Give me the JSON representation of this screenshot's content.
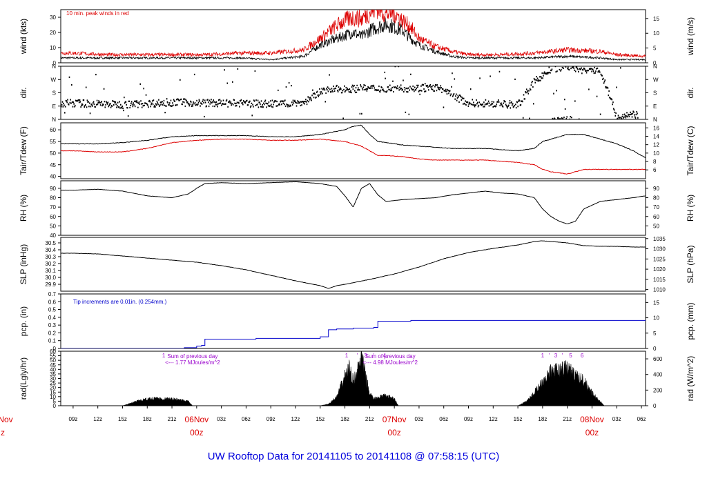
{
  "chart_data": {
    "type": "line",
    "title": "UW Rooftop Data for 20141105  to  20141108 @ 07:58:15  (UTC)",
    "x_axis": {
      "unit": "hours since 20141105 09z",
      "range": [
        -1.5,
        69.5
      ],
      "tick_labels": [
        "09z",
        "12z",
        "15z",
        "18z",
        "21z",
        "06Nov",
        "03z",
        "06z",
        "09z",
        "12z",
        "15z",
        "18z",
        "21z",
        "07Nov",
        "03z",
        "06z",
        "09z",
        "12z",
        "15z",
        "18z",
        "21z",
        "08Nov",
        "03z",
        "06z"
      ],
      "tick_hours": [
        0,
        3,
        6,
        9,
        12,
        15,
        18,
        21,
        24,
        27,
        30,
        33,
        36,
        39,
        42,
        45,
        48,
        51,
        54,
        57,
        60,
        63,
        66,
        69
      ],
      "day_markers": [
        {
          "hour": -9,
          "label": "Nov",
          "sub": "z"
        },
        {
          "hour": 15,
          "label": "06Nov",
          "sub": "00z"
        },
        {
          "hour": 39,
          "label": "07Nov",
          "sub": "00z"
        },
        {
          "hour": 63,
          "label": "08Nov",
          "sub": "00z"
        }
      ]
    },
    "panels": [
      {
        "id": "wind",
        "ylabel_left": "wind (kts)",
        "ylabel_right": "wind (m/s)",
        "ylim": [
          0,
          35
        ],
        "ticks_left": [
          0,
          10,
          20,
          30
        ],
        "ylim_right": [
          0,
          18
        ],
        "ticks_right": [
          0,
          5,
          10,
          15
        ],
        "annotation": "10 min. peak winds in red",
        "series": [
          {
            "name": "wind speed",
            "color": "#000000",
            "hours": [
              0,
              4,
              8,
              12,
              16,
              20,
              24,
              26,
              28,
              30,
              31,
              32,
              33,
              34,
              35,
              36,
              37,
              38,
              39,
              40,
              41,
              42,
              44,
              46,
              48,
              50,
              52,
              56,
              60,
              64,
              66,
              69.5
            ],
            "values": [
              3,
              3,
              3,
              3,
              3,
              3,
              2,
              3,
              4,
              11,
              13,
              15,
              17,
              19,
              16,
              20,
              22,
              24,
              22,
              20,
              15,
              11,
              7,
              4,
              3,
              3,
              3,
              3,
              4,
              3,
              2,
              2
            ]
          },
          {
            "name": "10 min. peak winds",
            "color": "#dd0000",
            "hours": [
              0,
              4,
              8,
              12,
              16,
              20,
              24,
              26,
              28,
              30,
              31,
              32,
              33,
              34,
              35,
              36,
              37,
              38,
              39,
              40,
              41,
              42,
              44,
              46,
              48,
              50,
              52,
              56,
              60,
              64,
              66,
              69.5
            ],
            "values": [
              6,
              5,
              5,
              5,
              5,
              6,
              6,
              7,
              8,
              15,
              19,
              23,
              26,
              28,
              27,
              31,
              34,
              30,
              31,
              26,
              22,
              15,
              10,
              7,
              5,
              5,
              5,
              6,
              8,
              7,
              5,
              4
            ]
          }
        ]
      },
      {
        "id": "dir",
        "ylabel_left": "dir.",
        "ylabel_right": "dir.",
        "ylim": [
          0,
          360
        ],
        "tick_labels": [
          "N",
          "E",
          "S",
          "W",
          "N"
        ],
        "tick_values": [
          0,
          90,
          180,
          270,
          360
        ],
        "series": [
          {
            "name": "wind direction",
            "color": "#000000",
            "style": "dots",
            "hours": [
              0,
              6,
              12,
              18,
              24,
              28,
              30,
              32,
              36,
              40,
              44,
              48,
              50,
              52,
              54,
              56,
              58,
              60,
              62,
              64,
              66,
              68
            ],
            "values": [
              110,
              100,
              115,
              110,
              105,
              115,
              190,
              205,
              210,
              210,
              215,
              110,
              110,
              105,
              100,
              260,
              340,
              360,
              330,
              330,
              10,
              30
            ]
          }
        ]
      },
      {
        "id": "temp",
        "ylabel_left": "Tair/Tdew (F)",
        "ylabel_right": "Tair/Tdew (C)",
        "ylim": [
          39,
          63
        ],
        "ticks_left": [
          40,
          45,
          50,
          55,
          60
        ],
        "ylim_right": [
          3.9,
          17.2
        ],
        "ticks_right": [
          6,
          8,
          10,
          12,
          14,
          16
        ],
        "series": [
          {
            "name": "Tair",
            "color": "#000000",
            "hours": [
              0,
              3,
              6,
              9,
              12,
              15,
              18,
              21,
              24,
              27,
              30,
              33,
              34,
              35,
              36,
              37,
              38,
              40,
              42,
              44,
              46,
              48,
              50,
              52,
              54,
              56,
              57,
              58,
              60,
              62,
              64,
              66,
              68,
              69.5
            ],
            "values": [
              54,
              54,
              54.5,
              55.5,
              57,
              57.5,
              57.5,
              57.5,
              57,
              57,
              58,
              60,
              61.5,
              62,
              58,
              55,
              54.5,
              53.5,
              53,
              52.5,
              52,
              52,
              52,
              51.5,
              51,
              52,
              55,
              56,
              58,
              58,
              56,
              54,
              51,
              48
            ]
          },
          {
            "name": "Tdew",
            "color": "#dd0000",
            "hours": [
              0,
              3,
              6,
              9,
              12,
              15,
              18,
              21,
              24,
              27,
              30,
              33,
              34,
              35,
              36,
              37,
              38,
              40,
              42,
              44,
              46,
              48,
              50,
              52,
              54,
              56,
              57,
              58,
              60,
              62,
              64,
              66,
              68,
              69.5
            ],
            "values": [
              51,
              50.5,
              50.5,
              52,
              54.5,
              55.5,
              56,
              56,
              55.5,
              55.5,
              56,
              55,
              54,
              53,
              51,
              49,
              49,
              48.5,
              47.5,
              47,
              47,
              47,
              47,
              46.5,
              46,
              45,
              43,
              42,
              41,
              43,
              43,
              43,
              43,
              43
            ]
          }
        ]
      },
      {
        "id": "rh",
        "ylabel_left": "RH (%)",
        "ylabel_right": "RH (%)",
        "ylim": [
          40,
          98
        ],
        "ticks_left": [
          40,
          50,
          60,
          70,
          80,
          90
        ],
        "ticks_right": [
          50,
          60,
          70,
          80,
          90
        ],
        "series": [
          {
            "name": "RH",
            "color": "#000000",
            "hours": [
              0,
              3,
              6,
              9,
              12,
              14,
              15,
              16,
              18,
              21,
              24,
              27,
              30,
              32,
              33,
              34,
              35,
              36,
              37,
              38,
              40,
              42,
              44,
              46,
              48,
              50,
              52,
              54,
              56,
              57,
              58,
              59,
              60,
              61,
              62,
              64,
              66,
              68,
              69.5
            ],
            "values": [
              88,
              89,
              87,
              82,
              80,
              84,
              90,
              95,
              96,
              95,
              96,
              97,
              95,
              92,
              82,
              70,
              90,
              95,
              83,
              76,
              78,
              79,
              80,
              83,
              85,
              87,
              85,
              84,
              80,
              68,
              60,
              55,
              52,
              55,
              68,
              76,
              78,
              80,
              82
            ]
          }
        ]
      },
      {
        "id": "slp",
        "ylabel_left": "SLP (inHg)",
        "ylabel_right": "SLP (hPa)",
        "ylim": [
          29.8,
          30.58
        ],
        "ticks_left": [
          29.9,
          30.0,
          30.1,
          30.2,
          30.3,
          30.4,
          30.5
        ],
        "ylim_right": [
          1009.2,
          1035.6
        ],
        "ticks_right": [
          1010,
          1015,
          1020,
          1025,
          1030,
          1035
        ],
        "series": [
          {
            "name": "SLP",
            "color": "#000000",
            "hours": [
              0,
              3,
              6,
              9,
              12,
              15,
              18,
              21,
              24,
              27,
              30,
              31,
              32,
              33,
              36,
              39,
              42,
              45,
              48,
              51,
              54,
              56,
              57,
              58,
              60,
              62,
              64,
              66,
              68,
              69.5
            ],
            "values": [
              30.35,
              30.34,
              30.31,
              30.28,
              30.25,
              30.22,
              30.17,
              30.11,
              30.03,
              29.95,
              29.88,
              29.84,
              29.88,
              29.9,
              29.97,
              30.05,
              30.15,
              30.27,
              30.36,
              30.42,
              30.47,
              30.52,
              30.53,
              30.52,
              30.5,
              30.46,
              30.45,
              30.45,
              30.44,
              30.44
            ]
          }
        ]
      },
      {
        "id": "pcp",
        "ylabel_left": "pcp. (in)",
        "ylabel_right": "pcp. (mm)",
        "ylim": [
          0,
          0.7
        ],
        "ticks_left": [
          0,
          0.1,
          0.2,
          0.3,
          0.4,
          0.5,
          0.6,
          0.7
        ],
        "ylim_right": [
          0,
          17.78
        ],
        "ticks_right": [
          0,
          5,
          10,
          15
        ],
        "annotation": "Tip increments are 0.01in. (0.254mm.)",
        "series": [
          {
            "name": "accumulated precipitation",
            "color": "#0000cc",
            "style": "step",
            "hours": [
              -1.5,
              12,
              13.5,
              15,
              15.6,
              16,
              22,
              22.2,
              24,
              30,
              31,
              32,
              34,
              36.5,
              37,
              41,
              69.5
            ],
            "values": [
              0,
              0,
              0.01,
              0.03,
              0.04,
              0.12,
              0.12,
              0.13,
              0.13,
              0.15,
              0.24,
              0.25,
              0.26,
              0.27,
              0.35,
              0.36,
              0.36
            ]
          }
        ]
      },
      {
        "id": "rad",
        "ylabel_left": "rad(Lgly/hr)",
        "ylabel_right": "rad (W/m^2)",
        "ylim": [
          0,
          60
        ],
        "ticks_left": [
          0,
          5,
          10,
          15,
          20,
          25,
          30,
          35,
          40,
          45,
          50,
          55,
          60
        ],
        "ylim_right": [
          0,
          697.8
        ],
        "ticks_right": [
          0,
          200,
          400,
          600
        ],
        "annotations": [
          {
            "hour": 14.5,
            "lines": [
              "Sum of previous day",
              "<--- 1.77 MJoules/m^2"
            ]
          },
          {
            "hour": 38.5,
            "lines": [
              "Sum of previous day",
              "<--- 4.98 MJoules/m^2"
            ]
          }
        ],
        "marker_labels": [
          {
            "hour": 11,
            "text": "1"
          },
          {
            "hour": 33.2,
            "text": "1"
          },
          {
            "hour": 34.5,
            "text": "'"
          },
          {
            "hour": 35.5,
            "text": "3"
          },
          {
            "hour": 36.5,
            "text": "'"
          },
          {
            "hour": 37.8,
            "text": "4"
          },
          {
            "hour": 57,
            "text": "1"
          },
          {
            "hour": 57.8,
            "text": "'"
          },
          {
            "hour": 58.6,
            "text": "3"
          },
          {
            "hour": 59.4,
            "text": "'"
          },
          {
            "hour": 60.4,
            "text": "5"
          },
          {
            "hour": 61.8,
            "text": "6"
          }
        ],
        "series": [
          {
            "name": "solar radiation",
            "color": "#000000",
            "style": "filled",
            "hours": [
              6,
              7,
              8,
              9,
              10,
              11,
              12,
              13,
              14,
              14.5,
              30,
              31,
              32,
              33,
              33.5,
              34,
              34.5,
              35,
              35.5,
              36,
              36.5,
              37,
              38,
              39,
              39.5,
              54,
              55,
              56,
              57,
              58,
              59,
              60,
              61,
              62,
              63,
              64,
              64.5
            ],
            "values": [
              0,
              3,
              6,
              8,
              9,
              8,
              8,
              7,
              5,
              0,
              0,
              2,
              10,
              35,
              45,
              30,
              40,
              58,
              35,
              15,
              8,
              10,
              12,
              8,
              0,
              0,
              5,
              15,
              30,
              40,
              42,
              45,
              35,
              30,
              15,
              5,
              0
            ]
          }
        ]
      }
    ]
  }
}
